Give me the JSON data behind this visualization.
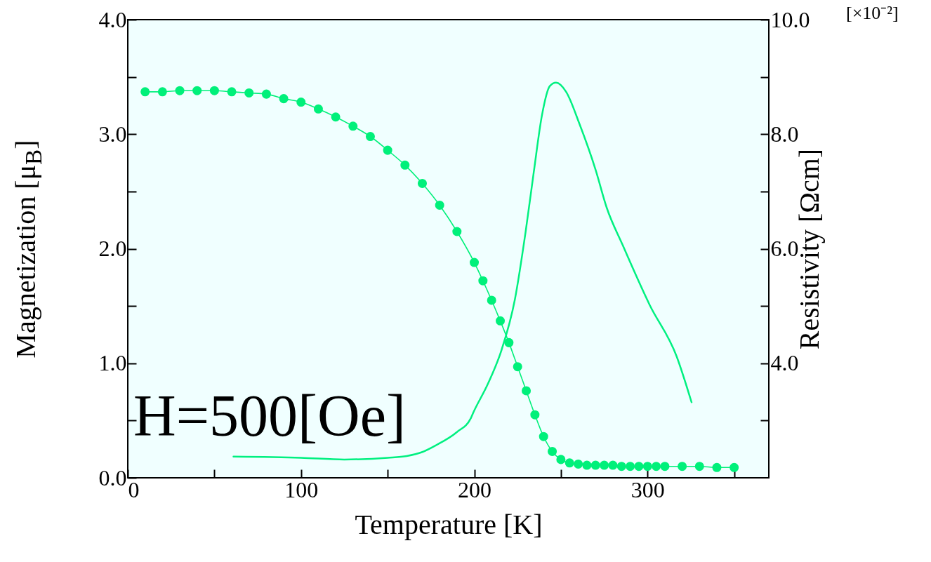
{
  "chart_data": {
    "type": "line",
    "xlabel": "Temperature [K]",
    "ylabel": "Magnetization [μ$_{B}$]",
    "y2label": "Resistivity [Ωcm]",
    "annotations": [
      "H=500[Oe]",
      "[×10⁻²]"
    ],
    "xlim": [
      0,
      370
    ],
    "xticks": [
      0,
      {
        "value": 50,
        "label": null
      },
      100,
      {
        "value": 150,
        "label": null
      },
      200,
      {
        "value": 250,
        "label": null
      },
      300,
      {
        "value": 350,
        "label": null
      }
    ],
    "ylim": [
      0,
      4
    ],
    "yticks": [
      {
        "value": 0,
        "label": "0.0"
      },
      {
        "value": 0.5,
        "label": null
      },
      {
        "value": 1,
        "label": "1.0"
      },
      {
        "value": 1.5,
        "label": null
      },
      {
        "value": 2,
        "label": "2.0"
      },
      {
        "value": 2.5,
        "label": null
      },
      {
        "value": 3,
        "label": "3.0"
      },
      {
        "value": 3.5,
        "label": null
      },
      {
        "value": 4,
        "label": "4.0"
      }
    ],
    "y2lim": [
      2,
      10
    ],
    "y2ticks": [
      {
        "value": 3,
        "label": null
      },
      {
        "value": 4,
        "label": "4.0"
      },
      {
        "value": 5,
        "label": null
      },
      {
        "value": 6,
        "label": "6.0"
      },
      {
        "value": 7,
        "label": null
      },
      {
        "value": 8,
        "label": "8.0"
      },
      {
        "value": 9,
        "label": null
      },
      {
        "value": 10,
        "label": "10.0"
      }
    ],
    "series": [
      {
        "marker": "circle",
        "color": "#00f07a",
        "x": [
          10,
          20,
          30,
          40,
          50,
          60,
          70,
          80,
          90,
          100,
          110,
          120,
          130,
          140,
          150,
          160,
          170,
          180,
          190,
          200,
          205,
          210,
          215,
          220,
          225,
          230,
          235,
          240,
          245,
          250,
          255,
          260,
          265,
          270,
          275,
          280,
          285,
          290,
          295,
          300,
          305,
          310,
          320,
          330,
          340,
          350
        ],
        "values": [
          3.37,
          3.37,
          3.38,
          3.38,
          3.38,
          3.37,
          3.36,
          3.35,
          3.31,
          3.28,
          3.22,
          3.15,
          3.07,
          2.98,
          2.86,
          2.73,
          2.57,
          2.38,
          2.15,
          1.88,
          1.72,
          1.55,
          1.37,
          1.18,
          0.97,
          0.76,
          0.55,
          0.36,
          0.23,
          0.16,
          0.13,
          0.12,
          0.11,
          0.11,
          0.11,
          0.11,
          0.1,
          0.1,
          0.1,
          0.1,
          0.1,
          0.1,
          0.1,
          0.1,
          0.09,
          0.09
        ]
      },
      {
        "marker": "none",
        "axis": "y2",
        "color": "#00f080",
        "x": [
          61,
          100,
          125,
          150,
          161,
          170,
          178,
          190,
          198,
          199.3,
          208,
          215.6,
          223.4,
          229.6,
          234.3,
          239,
          243.6,
          247.2,
          253,
          260.7,
          270,
          276.4,
          285.7,
          301.2,
          316.8,
          325.4
        ],
        "values": [
          2.37,
          2.35,
          2.32,
          2.35,
          2.38,
          2.45,
          2.57,
          2.8,
          3.04,
          3.13,
          3.65,
          4.22,
          5.11,
          6.29,
          7.33,
          8.32,
          8.84,
          8.9,
          8.74,
          8.18,
          7.38,
          6.72,
          6.06,
          5.02,
          4.12,
          3.32
        ]
      }
    ]
  }
}
